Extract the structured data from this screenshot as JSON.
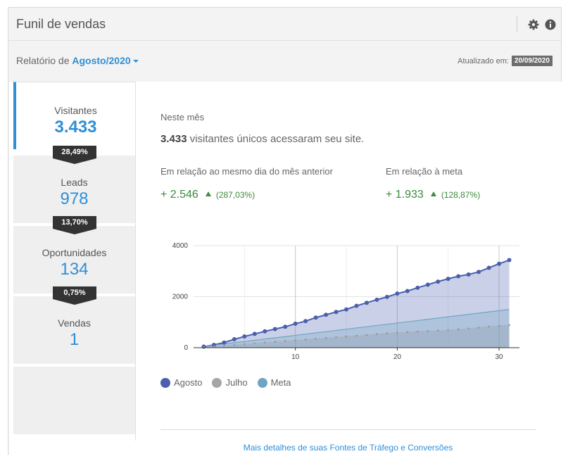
{
  "header": {
    "title": "Funil de vendas",
    "icons": [
      "gear-icon",
      "info-icon"
    ]
  },
  "report": {
    "prefix": "Relatório de",
    "month": "Agosto/2020",
    "updated_label": "Atualizado em:",
    "updated_date": "20/09/2020"
  },
  "funnel": {
    "stages": [
      {
        "label": "Visitantes",
        "value": "3.433"
      },
      {
        "label": "Leads",
        "value": "978"
      },
      {
        "label": "Oportunidades",
        "value": "134"
      },
      {
        "label": "Vendas",
        "value": "1"
      }
    ],
    "rates": [
      "28,49%",
      "13,70%",
      "0,75%"
    ]
  },
  "detail": {
    "heading": "Neste mês",
    "summary_value": "3.433",
    "summary_text": "visitantes únicos acessaram seu site.",
    "compare_prev_label": "Em relação ao mesmo dia do mês anterior",
    "compare_prev_value": "+ 2.546",
    "compare_prev_pct": "(287,03%)",
    "compare_goal_label": "Em relação à meta",
    "compare_goal_value": "+ 1.933",
    "compare_goal_pct": "(128,87%)",
    "more_link": "Mais detalhes de suas Fontes de Tráfego e Conversões"
  },
  "colors": {
    "accent": "#2f8fd6",
    "positive": "#3d8a3d",
    "agosto": "#4a5fad",
    "julho": "#a6a6a6",
    "meta": "#6fa5c4"
  },
  "chart_data": {
    "type": "area",
    "x": [
      1,
      2,
      3,
      4,
      5,
      6,
      7,
      8,
      9,
      10,
      11,
      12,
      13,
      14,
      15,
      16,
      17,
      18,
      19,
      20,
      21,
      22,
      23,
      24,
      25,
      26,
      27,
      28,
      29,
      30,
      31
    ],
    "xticks": [
      10,
      20,
      30
    ],
    "yticks": [
      0,
      2000,
      4000
    ],
    "xlim": [
      0,
      32
    ],
    "ylim": [
      0,
      4000
    ],
    "grid": true,
    "legend": "bottom-left",
    "series": [
      {
        "name": "Agosto",
        "values": [
          40,
          110,
          200,
          330,
          440,
          540,
          640,
          730,
          820,
          940,
          1040,
          1180,
          1290,
          1400,
          1500,
          1640,
          1760,
          1880,
          1990,
          2120,
          2220,
          2350,
          2470,
          2590,
          2700,
          2800,
          2870,
          2970,
          3130,
          3290,
          3433
        ]
      },
      {
        "name": "Julho",
        "values": [
          20,
          50,
          80,
          110,
          140,
          170,
          200,
          230,
          260,
          290,
          320,
          350,
          380,
          410,
          440,
          470,
          500,
          530,
          560,
          590,
          610,
          630,
          650,
          670,
          690,
          720,
          750,
          790,
          830,
          860,
          887
        ]
      },
      {
        "name": "Meta",
        "values": [
          48,
          97,
          145,
          194,
          242,
          290,
          339,
          387,
          435,
          484,
          532,
          581,
          629,
          677,
          726,
          774,
          823,
          871,
          919,
          968,
          1016,
          1064,
          1113,
          1161,
          1210,
          1258,
          1306,
          1355,
          1403,
          1452,
          1500
        ]
      }
    ]
  }
}
